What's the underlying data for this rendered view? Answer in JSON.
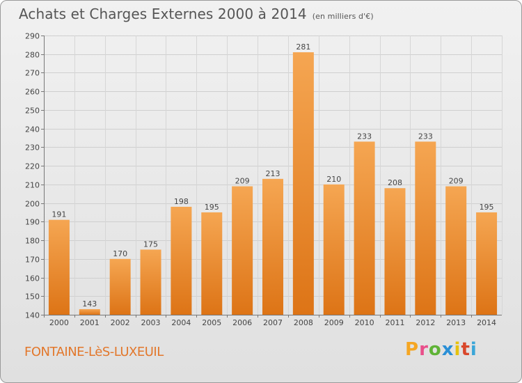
{
  "header": {
    "title": "Achats et Charges Externes 2000 à 2014",
    "subtitle": "(en milliers d'€)"
  },
  "footer": {
    "town": "FONTAINE-LèS-LUXEUIL",
    "logo_text": "Proxiti",
    "logo_colors": [
      "#f5a623",
      "#e94f8a",
      "#5fb336",
      "#2a8fd6",
      "#e6c20f",
      "#d9472b",
      "#3aa6d8"
    ]
  },
  "chart_data": {
    "type": "bar",
    "title": "Achats et Charges Externes 2000 à 2014",
    "subtitle": "(en milliers d'€)",
    "xlabel": "",
    "ylabel": "",
    "categories": [
      "2000",
      "2001",
      "2002",
      "2003",
      "2004",
      "2005",
      "2006",
      "2007",
      "2008",
      "2009",
      "2010",
      "2011",
      "2012",
      "2013",
      "2014"
    ],
    "values": [
      191,
      143,
      170,
      175,
      198,
      195,
      209,
      213,
      281,
      210,
      233,
      208,
      233,
      209,
      195
    ],
    "ylim": [
      140,
      290
    ],
    "yticks": [
      140,
      150,
      160,
      170,
      180,
      190,
      200,
      210,
      220,
      230,
      240,
      250,
      260,
      270,
      280,
      290
    ],
    "grid": true,
    "legend": "none",
    "bar_color": "#f0933a"
  }
}
